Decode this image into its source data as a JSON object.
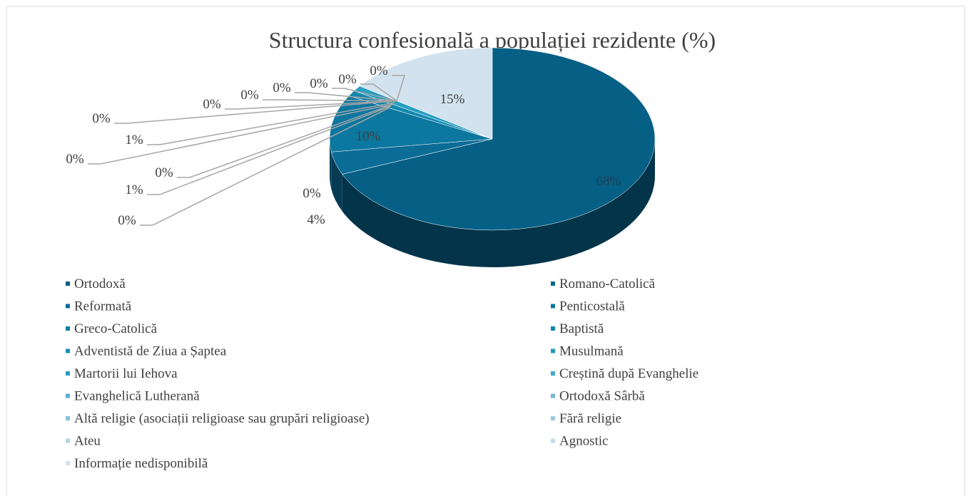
{
  "chart_data": {
    "type": "pie3d",
    "title": "Structura confesională a populației rezidente (%)",
    "categories": [
      "Ortodoxă",
      "Romano-Catolică",
      "Reformată",
      "Penticostală",
      "Greco-Catolică",
      "Baptistă",
      "Adventistă de Ziua a Șaptea",
      "Musulmană",
      "Martorii lui Iehova",
      "Creștină după Evanghelie",
      "Evanghelică Lutherană",
      "Ortodoxă Sârbă",
      "Altă religie (asociații religioase sau grupări religioase)",
      "Fără religie",
      "Ateu",
      "Agnostic",
      "Informație nedisponibilă"
    ],
    "values": [
      68,
      0,
      4,
      10,
      0,
      1,
      0,
      0,
      1,
      0,
      0,
      0,
      0,
      0,
      0,
      0,
      15
    ],
    "value_labels": [
      "68%",
      "0%",
      "4%",
      "10%",
      "0%",
      "1%",
      "0%",
      "0%",
      "1%",
      "0%",
      "0%",
      "0%",
      "0%",
      "0%",
      "0%",
      "0%",
      "15%"
    ],
    "colors": [
      "#065f85",
      "#0a6690",
      "#0b6c96",
      "#0c779f",
      "#0e7fa6",
      "#1287ad",
      "#1790b5",
      "#1e98bc",
      "#269fc2",
      "#43a7c8",
      "#5cb0cd",
      "#72b8d1",
      "#88c1d6",
      "#9ccadb",
      "#b0d3e1",
      "#c2dbe7",
      "#d2e2ee"
    ],
    "legend": "bottom"
  }
}
